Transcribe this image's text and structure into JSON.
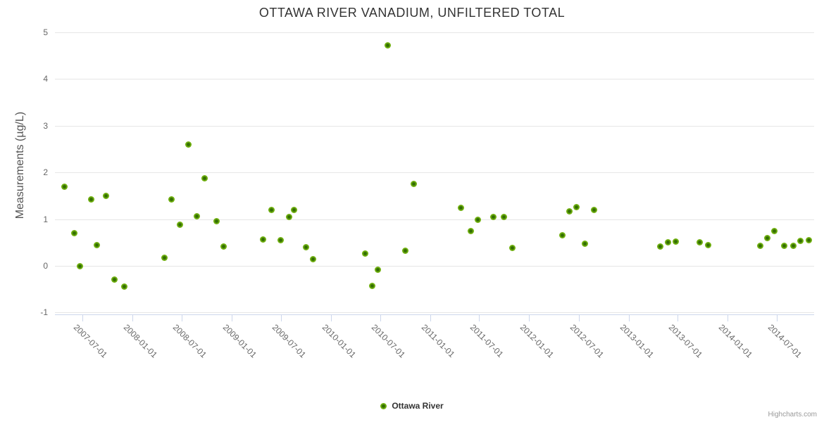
{
  "title": "OTTAWA RIVER VANADIUM, UNFILTERED TOTAL",
  "credits_label": "Highcharts.com",
  "legend": {
    "series_label": "Ottawa River"
  },
  "colors": {
    "marker_outer": "#7ab811",
    "marker_inner": "#336e02",
    "gridline": "#e6e6e6",
    "axis_line": "#ccd6eb",
    "title_text": "#333333",
    "axis_label_text": "#666666",
    "credits_text": "#999999"
  },
  "chart_data": {
    "type": "scatter",
    "title": "OTTAWA RIVER VANADIUM, UNFILTERED TOTAL",
    "xlabel": "",
    "ylabel": "Measurements (µg/L)",
    "ylim": [
      -1,
      5
    ],
    "y_ticks": [
      5,
      4,
      3,
      2,
      1,
      0,
      -1
    ],
    "x_ticks": [
      "2007-07-01",
      "2008-01-01",
      "2008-07-01",
      "2009-01-01",
      "2009-07-01",
      "2010-01-01",
      "2010-07-01",
      "2011-01-01",
      "2011-07-01",
      "2012-01-01",
      "2012-07-01",
      "2013-01-01",
      "2013-07-01",
      "2014-01-01",
      "2014-07-01"
    ],
    "grid": true,
    "legend_position": "bottom-center",
    "series": [
      {
        "name": "Ottawa River",
        "points": [
          {
            "x": "2007-04-25",
            "y": 1.7
          },
          {
            "x": "2007-05-31",
            "y": 0.7
          },
          {
            "x": "2007-06-21",
            "y": 0.0
          },
          {
            "x": "2007-08-01",
            "y": 1.42
          },
          {
            "x": "2007-08-24",
            "y": 0.44
          },
          {
            "x": "2007-09-27",
            "y": 1.5
          },
          {
            "x": "2007-10-26",
            "y": -0.3
          },
          {
            "x": "2007-12-01",
            "y": -0.45
          },
          {
            "x": "2008-04-29",
            "y": 0.18
          },
          {
            "x": "2008-05-23",
            "y": 1.43
          },
          {
            "x": "2008-06-25",
            "y": 0.88
          },
          {
            "x": "2008-07-24",
            "y": 2.6
          },
          {
            "x": "2008-08-24",
            "y": 1.07
          },
          {
            "x": "2008-09-24",
            "y": 1.88
          },
          {
            "x": "2008-11-05",
            "y": 0.95
          },
          {
            "x": "2008-12-03",
            "y": 0.42
          },
          {
            "x": "2009-04-27",
            "y": 0.57
          },
          {
            "x": "2009-05-26",
            "y": 1.2
          },
          {
            "x": "2009-06-29",
            "y": 0.55
          },
          {
            "x": "2009-07-30",
            "y": 1.05
          },
          {
            "x": "2009-08-17",
            "y": 1.2
          },
          {
            "x": "2009-09-30",
            "y": 0.4
          },
          {
            "x": "2009-10-26",
            "y": 0.15
          },
          {
            "x": "2010-05-06",
            "y": 0.27
          },
          {
            "x": "2010-06-01",
            "y": -0.43
          },
          {
            "x": "2010-06-22",
            "y": -0.08
          },
          {
            "x": "2010-07-28",
            "y": 4.72
          },
          {
            "x": "2010-10-01",
            "y": 0.33
          },
          {
            "x": "2010-11-01",
            "y": 1.75
          },
          {
            "x": "2011-04-26",
            "y": 1.25
          },
          {
            "x": "2011-05-30",
            "y": 0.74
          },
          {
            "x": "2011-06-27",
            "y": 0.98
          },
          {
            "x": "2011-08-23",
            "y": 1.04
          },
          {
            "x": "2011-09-29",
            "y": 1.04
          },
          {
            "x": "2011-10-30",
            "y": 0.38
          },
          {
            "x": "2012-05-01",
            "y": 0.65
          },
          {
            "x": "2012-05-27",
            "y": 1.17
          },
          {
            "x": "2012-06-24",
            "y": 1.26
          },
          {
            "x": "2012-07-23",
            "y": 0.47
          },
          {
            "x": "2012-08-28",
            "y": 1.2
          },
          {
            "x": "2013-04-27",
            "y": 0.42
          },
          {
            "x": "2013-05-25",
            "y": 0.5
          },
          {
            "x": "2013-06-25",
            "y": 0.52
          },
          {
            "x": "2013-09-21",
            "y": 0.5
          },
          {
            "x": "2013-10-22",
            "y": 0.44
          },
          {
            "x": "2014-04-30",
            "y": 0.43
          },
          {
            "x": "2014-05-26",
            "y": 0.6
          },
          {
            "x": "2014-06-23",
            "y": 0.74
          },
          {
            "x": "2014-07-27",
            "y": 0.43
          },
          {
            "x": "2014-09-01",
            "y": 0.43
          },
          {
            "x": "2014-09-27",
            "y": 0.54
          },
          {
            "x": "2014-10-26",
            "y": 0.55
          }
        ]
      }
    ]
  }
}
